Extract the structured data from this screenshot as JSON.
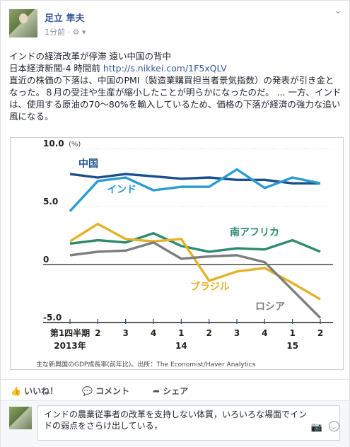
{
  "post": {
    "author": "足立 隼夫",
    "time": "1分前",
    "text_line1": "インドの経済改革が停滞 遠い中国の背中",
    "source": "日本経済新聞-4 時間前",
    "link": "http://s.nikkei.com/1F5xQLV",
    "body": "直近の株価の下落は、中国のPMI（製造業購買担当者景気指数）の発表が引き金となった。８月の受注や生産が縮小したことが明らかになったのだ。 ... 一方、インドは、使用する原油の70〜80%を輸入しているため、価格の下落が経済の強力な追い風になる。"
  },
  "chart_data": {
    "type": "line",
    "ylabel_unit": "(%)",
    "ylim": [
      -5,
      10
    ],
    "yticks": [
      "10.0",
      "5.0",
      "0",
      "-5.0"
    ],
    "x_labels": [
      "第1四半期",
      "2",
      "3",
      "4",
      "1",
      "2",
      "3",
      "4",
      "1",
      "2"
    ],
    "year_labels": [
      "2013年",
      "14",
      "15"
    ],
    "caption": "主な新興国のGDP成長率(前年比)。出所：The Economist/Haver Analytics",
    "series": [
      {
        "name": "中国",
        "color": "#1b4f8c",
        "values": [
          7.8,
          7.5,
          7.8,
          7.6,
          7.4,
          7.5,
          7.3,
          7.3,
          7.0,
          7.0
        ]
      },
      {
        "name": "インド",
        "color": "#2b9bd3",
        "values": [
          4.6,
          7.2,
          7.5,
          6.4,
          6.7,
          6.7,
          8.2,
          6.6,
          7.5,
          7.0
        ]
      },
      {
        "name": "南アフリカ",
        "color": "#2e8a6e",
        "values": [
          1.8,
          2.1,
          1.9,
          2.7,
          1.6,
          1.1,
          1.4,
          1.3,
          2.1,
          1.1
        ]
      },
      {
        "name": "ブラジル",
        "color": "#e2b22a",
        "values": [
          2.0,
          3.5,
          2.2,
          2.0,
          2.2,
          -1.4,
          -0.6,
          -0.3,
          -1.6,
          -3.0
        ]
      },
      {
        "name": "ロシア",
        "color": "#7d7d7d",
        "values": [
          0.8,
          1.1,
          1.2,
          1.9,
          0.5,
          0.7,
          0.8,
          0.2,
          -2.2,
          -4.6
        ]
      }
    ]
  },
  "actions": {
    "like": "いいね！",
    "comment": "コメント",
    "share": "シェア"
  },
  "comment_input": {
    "value": "インドの農業従事者の改革を支持しない体質，いろいろな場面でインドの弱点をさらけ出している，"
  }
}
